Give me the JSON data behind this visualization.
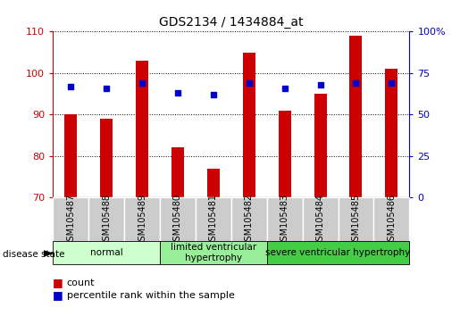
{
  "title": "GDS2134 / 1434884_at",
  "samples": [
    "GSM105487",
    "GSM105488",
    "GSM105489",
    "GSM105480",
    "GSM105481",
    "GSM105482",
    "GSM105483",
    "GSM105484",
    "GSM105485",
    "GSM105486"
  ],
  "counts": [
    90,
    89,
    103,
    82,
    77,
    105,
    91,
    95,
    109,
    101
  ],
  "percentiles": [
    67,
    66,
    69,
    63,
    62,
    69,
    66,
    68,
    69,
    69
  ],
  "ylim_left": [
    70,
    110
  ],
  "ylim_right": [
    0,
    100
  ],
  "yticks_left": [
    70,
    80,
    90,
    100,
    110
  ],
  "yticks_right": [
    0,
    25,
    50,
    75,
    100
  ],
  "bar_color": "#cc0000",
  "dot_color": "#0000cc",
  "groups": [
    {
      "label": "normal",
      "start": 0,
      "end": 3,
      "color": "#ccffcc"
    },
    {
      "label": "limited ventricular\nhypertrophy",
      "start": 3,
      "end": 6,
      "color": "#99ee99"
    },
    {
      "label": "severe ventricular hypertrophy",
      "start": 6,
      "end": 10,
      "color": "#44cc44"
    }
  ],
  "disease_state_label": "disease state",
  "legend_count_label": "count",
  "legend_percentile_label": "percentile rank within the sample",
  "tick_bg_color": "#cccccc",
  "bar_width": 0.35
}
